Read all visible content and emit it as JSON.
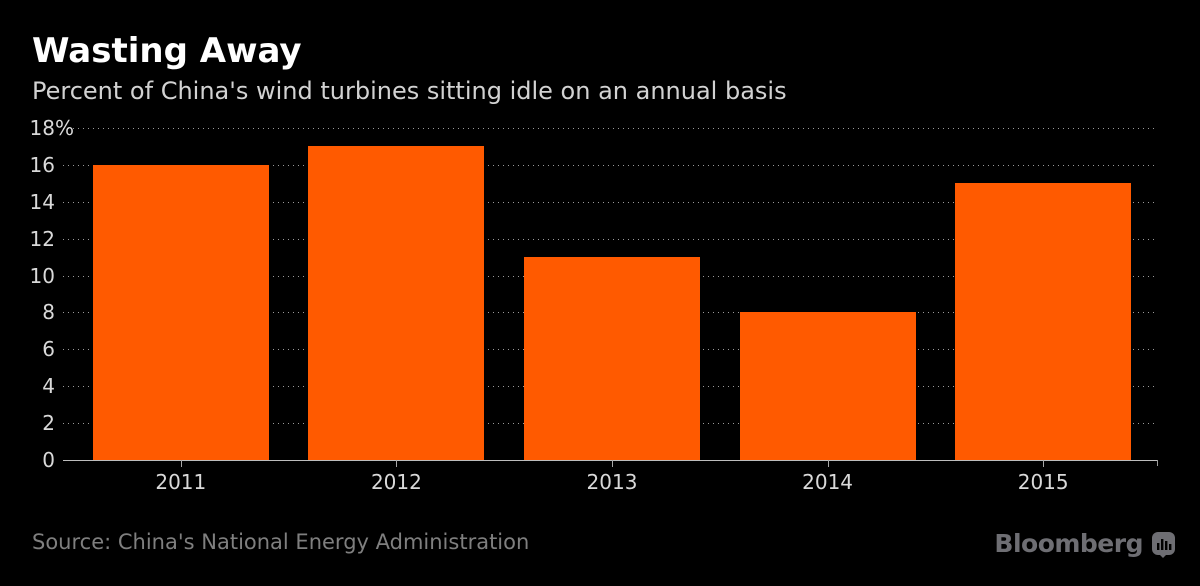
{
  "header": {
    "title": "Wasting Away",
    "subtitle": "Percent of China's wind turbines sitting idle on an annual basis"
  },
  "footer": {
    "source": "Source: China's National Energy Administration",
    "brand": "Bloomberg"
  },
  "colors": {
    "background": "#000000",
    "bar": "#ff5a00",
    "title_text": "#ffffff",
    "subtitle_text": "#d2d2d2",
    "axis_label": "#d9d9d9",
    "gridline": "#9a9a9a",
    "baseline": "#bdbdbd",
    "source_text": "#7f7f7f",
    "brand_gray": "#6e6e73"
  },
  "chart_data": {
    "type": "bar",
    "title": "Wasting Away",
    "subtitle": "Percent of China's wind turbines sitting idle on an annual basis",
    "categories": [
      "2011",
      "2012",
      "2013",
      "2014",
      "2015"
    ],
    "values": [
      16,
      17,
      11,
      8,
      15
    ],
    "xlabel": "",
    "ylabel": "",
    "ylim": [
      0,
      18
    ],
    "yticks": [
      18,
      16,
      14,
      12,
      10,
      8,
      6,
      4,
      2,
      0
    ],
    "ytick_labels": [
      "18%",
      "16",
      "14",
      "12",
      "10",
      "8",
      "6",
      "4",
      "2",
      "0"
    ],
    "grid": "horizontal-dotted",
    "legend": "none",
    "bar_color": "#ff5a00"
  }
}
